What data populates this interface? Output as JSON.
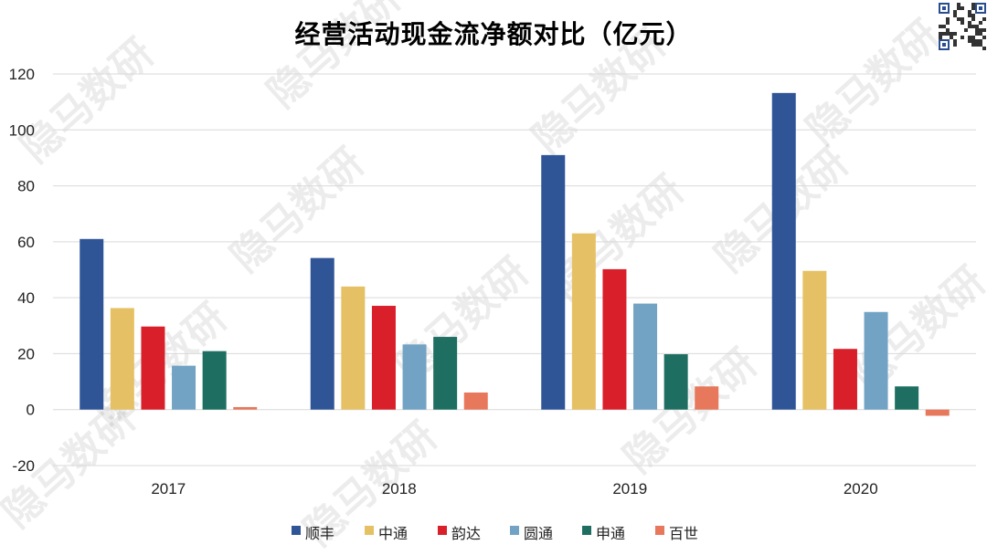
{
  "chart_data": {
    "type": "bar",
    "title": "经营活动现金流净额对比（亿元）",
    "categories": [
      "2017",
      "2018",
      "2019",
      "2020"
    ],
    "series": [
      {
        "name": "顺丰",
        "color": "#2f5597",
        "values": [
          61,
          54.2,
          91,
          113.2
        ]
      },
      {
        "name": "中通",
        "color": "#e6c065",
        "values": [
          36.3,
          44,
          63,
          49.6
        ]
      },
      {
        "name": "韵达",
        "color": "#d91f2a",
        "values": [
          29.7,
          37.1,
          50.2,
          21.7
        ]
      },
      {
        "name": "圆通",
        "color": "#72a3c4",
        "values": [
          15.7,
          23.3,
          37.9,
          34.9
        ]
      },
      {
        "name": "申通",
        "color": "#1e6f62",
        "values": [
          20.9,
          26,
          19.8,
          8.3
        ]
      },
      {
        "name": "百世",
        "color": "#e7785b",
        "values": [
          0.9,
          6.1,
          8.3,
          -2.2
        ]
      }
    ],
    "ylim": [
      -20,
      120
    ],
    "yticks": [
      "-20",
      "0",
      "20",
      "40",
      "60",
      "80",
      "100",
      "120"
    ],
    "grid": true,
    "legend_position": "bottom"
  },
  "watermark": "隐马数研",
  "qr_icon": "qr-code-icon"
}
